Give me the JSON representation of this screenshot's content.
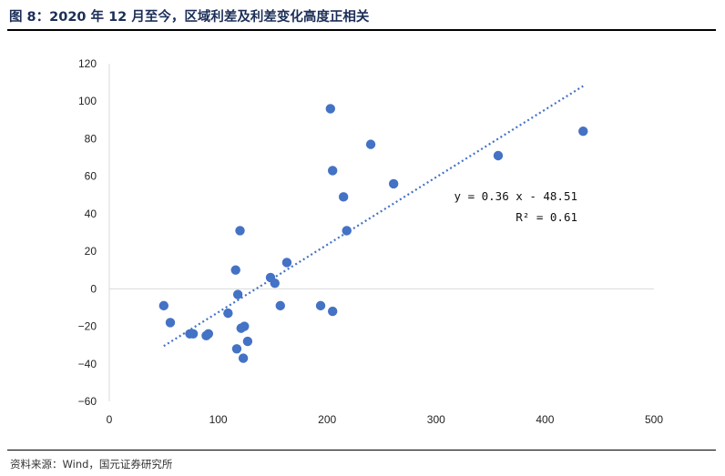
{
  "figure": {
    "title": "图 8：2020 年 12 月至今，区域利差及利差变化高度正相关",
    "source": "资料来源：Wind，国元证券研究所"
  },
  "chart_data": {
    "type": "scatter",
    "xlim": [
      0,
      500
    ],
    "ylim": [
      -60,
      120
    ],
    "x_ticks": [
      0,
      100,
      200,
      300,
      400,
      500
    ],
    "y_ticks": [
      -60,
      -40,
      -20,
      0,
      20,
      40,
      60,
      80,
      100,
      120
    ],
    "grid": false,
    "marker_color": "#4472C4",
    "trendline": {
      "slope": 0.36,
      "intercept": -48.51,
      "x_range": [
        50,
        435
      ],
      "equation": "y = 0.36 x - 48.51",
      "r2": "R² = 0.61",
      "color": "#4472C4"
    },
    "points": [
      {
        "x": 50,
        "y": -9
      },
      {
        "x": 56,
        "y": -18
      },
      {
        "x": 74,
        "y": -24
      },
      {
        "x": 77,
        "y": -24
      },
      {
        "x": 89,
        "y": -25
      },
      {
        "x": 91,
        "y": -24
      },
      {
        "x": 109,
        "y": -13
      },
      {
        "x": 116,
        "y": 10
      },
      {
        "x": 117,
        "y": -32
      },
      {
        "x": 118,
        "y": -3
      },
      {
        "x": 120,
        "y": 31
      },
      {
        "x": 121,
        "y": -21
      },
      {
        "x": 123,
        "y": -37
      },
      {
        "x": 124,
        "y": -20
      },
      {
        "x": 127,
        "y": -28
      },
      {
        "x": 148,
        "y": 6
      },
      {
        "x": 152,
        "y": 3
      },
      {
        "x": 157,
        "y": -9
      },
      {
        "x": 163,
        "y": 14
      },
      {
        "x": 194,
        "y": -9
      },
      {
        "x": 203,
        "y": 96
      },
      {
        "x": 205,
        "y": 63
      },
      {
        "x": 205,
        "y": -12
      },
      {
        "x": 215,
        "y": 49
      },
      {
        "x": 218,
        "y": 31
      },
      {
        "x": 240,
        "y": 77
      },
      {
        "x": 261,
        "y": 56
      },
      {
        "x": 357,
        "y": 71
      },
      {
        "x": 435,
        "y": 84
      }
    ]
  }
}
